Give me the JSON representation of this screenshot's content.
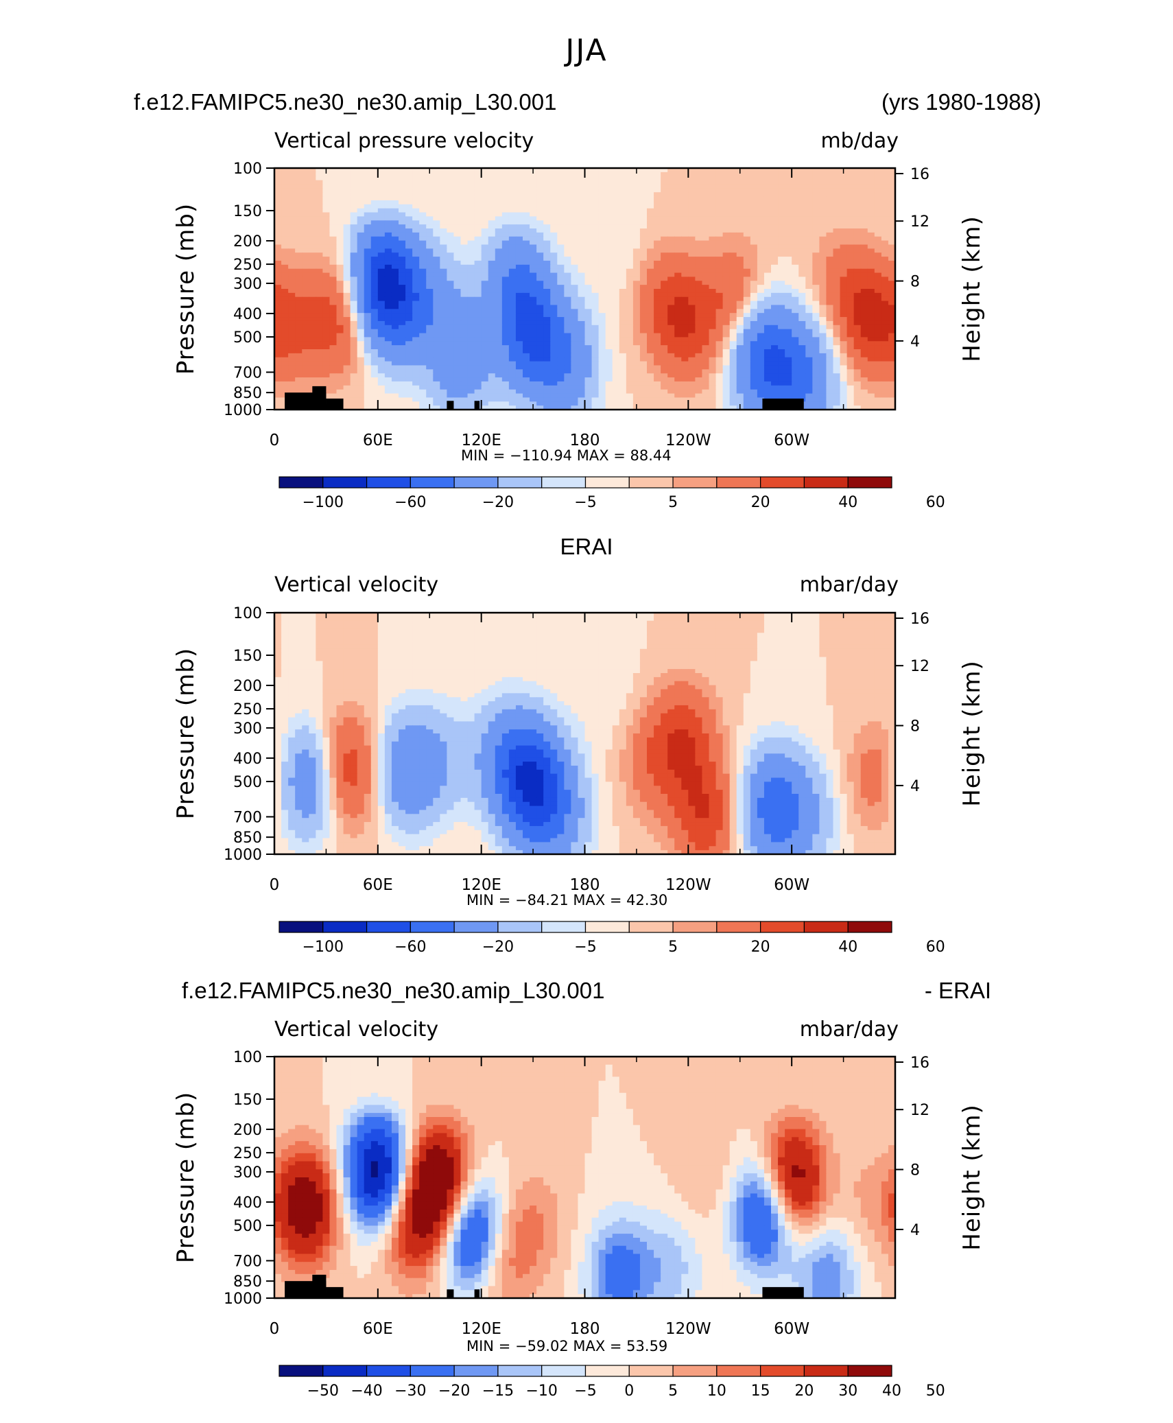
{
  "page_title": "JJA",
  "colors": {
    "ramp": [
      "#08107e",
      "#0a2cc4",
      "#1f4fe6",
      "#3a70f2",
      "#6f98f3",
      "#a9c5f8",
      "#d4e5fb",
      "#fde9da",
      "#fbc6ab",
      "#f6a081",
      "#ef7655",
      "#e34b2b",
      "#c92b16",
      "#8f0a0a"
    ],
    "land": "#000000"
  },
  "panels": [
    {
      "left_title": "f.e12.FAMIPC5.ne30_ne30.amip_L30.001",
      "right_title": "(yrs 1980-1988)",
      "variable": "Vertical pressure velocity",
      "units": "mb/day",
      "ylabel": "Pressure (mb)",
      "y2label": "Height (km)",
      "stats": "MIN = −110.94   MAX =   88.44",
      "colorbar_labels": [
        "−100",
        "−60",
        "−20",
        "−5",
        "5",
        "20",
        "40",
        "60"
      ]
    },
    {
      "left_title": "",
      "center_title": "ERAI",
      "right_title": "",
      "variable": "Vertical velocity",
      "units": "mbar/day",
      "ylabel": "Pressure (mb)",
      "y2label": "Height (km)",
      "stats": "MIN = −84.21   MAX =   42.30",
      "colorbar_labels": [
        "−100",
        "−60",
        "−20",
        "−5",
        "5",
        "20",
        "40",
        "60"
      ]
    },
    {
      "left_title": "f.e12.FAMIPC5.ne30_ne30.amip_L30.001",
      "right_title": "- ERAI",
      "variable": "Vertical velocity",
      "units": "mbar/day",
      "ylabel": "Pressure (mb)",
      "y2label": "Height (km)",
      "stats": "MIN = −59.02   MAX =   53.59",
      "colorbar_labels": [
        "−50",
        "−40",
        "−30",
        "−20",
        "−15",
        "−10",
        "−5",
        "0",
        "5",
        "10",
        "15",
        "20",
        "30",
        "40",
        "50"
      ]
    }
  ],
  "chart_data": [
    {
      "type": "heatmap",
      "title": "f.e12.FAMIPC5.ne30_ne30.amip_L30.001",
      "x_ticks": [
        "0",
        "60E",
        "120E",
        "180",
        "120W",
        "60W"
      ],
      "y_ticks": [
        "100",
        "150",
        "200",
        "250",
        "300",
        "400",
        "500",
        "700",
        "850",
        "1000"
      ],
      "y2_ticks": [
        "16",
        "12",
        "8",
        "4"
      ],
      "contour_levels": [
        -100,
        -80,
        -60,
        -40,
        -20,
        -10,
        -5,
        0,
        5,
        10,
        20,
        30,
        40,
        50,
        60
      ],
      "blobs": [
        {
          "lon": 10,
          "p": 450,
          "value": 20
        },
        {
          "lon": 38,
          "p": 420,
          "value": 25
        },
        {
          "lon": 63,
          "p": 290,
          "value": -70
        },
        {
          "lon": 72,
          "p": 400,
          "value": -30
        },
        {
          "lon": 90,
          "p": 330,
          "value": -20
        },
        {
          "lon": 108,
          "p": 600,
          "value": -35
        },
        {
          "lon": 150,
          "p": 500,
          "value": -55
        },
        {
          "lon": 140,
          "p": 300,
          "value": -35
        },
        {
          "lon": 170,
          "p": 650,
          "value": -30
        },
        {
          "lon": 200,
          "p": 220,
          "value": -5
        },
        {
          "lon": 240,
          "p": 450,
          "value": 25
        },
        {
          "lon": 225,
          "p": 350,
          "value": 15
        },
        {
          "lon": 268,
          "p": 350,
          "value": 20
        },
        {
          "lon": 283,
          "p": 600,
          "value": -50
        },
        {
          "lon": 300,
          "p": 750,
          "value": -35
        },
        {
          "lon": 315,
          "p": 700,
          "value": -15
        },
        {
          "lon": 345,
          "p": 420,
          "value": 30
        },
        {
          "lon": 328,
          "p": 300,
          "value": 12
        }
      ],
      "ylim": [
        1000,
        100
      ],
      "xlim": [
        0,
        360
      ]
    },
    {
      "type": "heatmap",
      "title": "ERAI",
      "x_ticks": [
        "0",
        "60E",
        "120E",
        "180",
        "120W",
        "60W"
      ],
      "y_ticks": [
        "100",
        "150",
        "200",
        "250",
        "300",
        "400",
        "500",
        "700",
        "850",
        "1000"
      ],
      "y2_ticks": [
        "16",
        "12",
        "8",
        "4"
      ],
      "contour_levels": [
        -100,
        -80,
        -60,
        -40,
        -20,
        -10,
        -5,
        0,
        5,
        10,
        20,
        30,
        40,
        50,
        60
      ],
      "blobs": [
        {
          "lon": 20,
          "p": 500,
          "value": -35
        },
        {
          "lon": 42,
          "p": 450,
          "value": 30
        },
        {
          "lon": 78,
          "p": 450,
          "value": -35
        },
        {
          "lon": 100,
          "p": 400,
          "value": -12
        },
        {
          "lon": 150,
          "p": 520,
          "value": -70
        },
        {
          "lon": 135,
          "p": 400,
          "value": -30
        },
        {
          "lon": 165,
          "p": 700,
          "value": -25
        },
        {
          "lon": 238,
          "p": 330,
          "value": 25
        },
        {
          "lon": 250,
          "p": 700,
          "value": 28
        },
        {
          "lon": 220,
          "p": 420,
          "value": 15
        },
        {
          "lon": 290,
          "p": 650,
          "value": -50
        },
        {
          "lon": 310,
          "p": 700,
          "value": -15
        },
        {
          "lon": 350,
          "p": 480,
          "value": 15
        },
        {
          "lon": 190,
          "p": 200,
          "value": -5
        }
      ],
      "ylim": [
        1000,
        100
      ],
      "xlim": [
        0,
        360
      ]
    },
    {
      "type": "heatmap",
      "title": "f.e12.FAMIPC5.ne30_ne30.amip_L30.001 - ERAI",
      "x_ticks": [
        "0",
        "60E",
        "120E",
        "180",
        "120W",
        "60W"
      ],
      "y_ticks": [
        "100",
        "150",
        "200",
        "250",
        "300",
        "400",
        "500",
        "700",
        "850",
        "1000"
      ],
      "y2_ticks": [
        "16",
        "12",
        "8",
        "4"
      ],
      "contour_levels": [
        -50,
        -40,
        -30,
        -20,
        -15,
        -10,
        -5,
        0,
        5,
        10,
        15,
        20,
        30,
        40,
        50
      ],
      "blobs": [
        {
          "lon": 18,
          "p": 420,
          "value": 40
        },
        {
          "lon": 60,
          "p": 300,
          "value": -55
        },
        {
          "lon": 95,
          "p": 330,
          "value": 45
        },
        {
          "lon": 80,
          "p": 500,
          "value": 25
        },
        {
          "lon": 115,
          "p": 550,
          "value": -40
        },
        {
          "lon": 130,
          "p": 700,
          "value": 15
        },
        {
          "lon": 150,
          "p": 500,
          "value": 10
        },
        {
          "lon": 200,
          "p": 800,
          "value": -25
        },
        {
          "lon": 230,
          "p": 750,
          "value": -12
        },
        {
          "lon": 285,
          "p": 450,
          "value": -40
        },
        {
          "lon": 300,
          "p": 330,
          "value": 42
        },
        {
          "lon": 320,
          "p": 820,
          "value": -20
        },
        {
          "lon": 345,
          "p": 400,
          "value": 6
        },
        {
          "lon": 250,
          "p": 300,
          "value": 5
        }
      ],
      "ylim": [
        1000,
        100
      ],
      "xlim": [
        0,
        360
      ]
    }
  ]
}
